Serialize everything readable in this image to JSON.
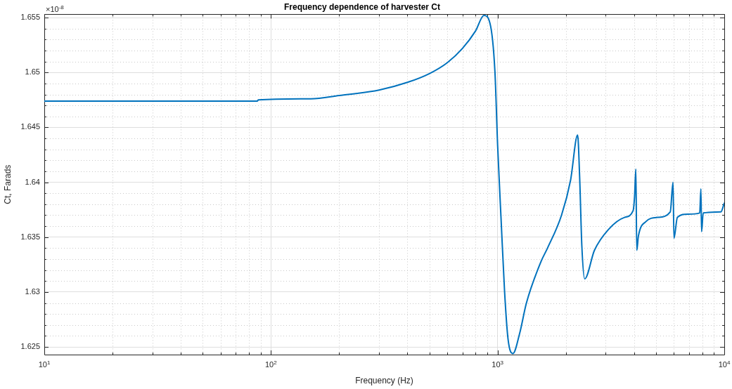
{
  "chart_data": {
    "type": "line",
    "title": "Frequency dependence of harvester Ct",
    "xlabel": "Frequency (Hz)",
    "ylabel": "Ct, Farads",
    "annotations": [
      "×10$^{-8}$"
    ],
    "log": "x",
    "grid": true,
    "legend": false,
    "marker": "none",
    "line_style": "solid",
    "xlim": [
      10,
      10000
    ],
    "xticks": [
      {
        "value": 10,
        "label": "10$^{1}$"
      },
      {
        "value": 20,
        "label": null
      },
      {
        "value": 30,
        "label": null
      },
      {
        "value": 40,
        "label": null
      },
      {
        "value": 50,
        "label": null
      },
      {
        "value": 60,
        "label": null
      },
      {
        "value": 70,
        "label": null
      },
      {
        "value": 80,
        "label": null
      },
      {
        "value": 90,
        "label": null
      },
      {
        "value": 100,
        "label": "10$^{2}$"
      },
      {
        "value": 200,
        "label": null
      },
      {
        "value": 300,
        "label": null
      },
      {
        "value": 400,
        "label": null
      },
      {
        "value": 500,
        "label": null
      },
      {
        "value": 600,
        "label": null
      },
      {
        "value": 700,
        "label": null
      },
      {
        "value": 800,
        "label": null
      },
      {
        "value": 900,
        "label": null
      },
      {
        "value": 1000,
        "label": "10$^{3}$"
      },
      {
        "value": 2000,
        "label": null
      },
      {
        "value": 3000,
        "label": null
      },
      {
        "value": 4000,
        "label": null
      },
      {
        "value": 5000,
        "label": null
      },
      {
        "value": 6000,
        "label": null
      },
      {
        "value": 7000,
        "label": null
      },
      {
        "value": 8000,
        "label": null
      },
      {
        "value": 9000,
        "label": null
      },
      {
        "value": 10000,
        "label": "10$^{4}$"
      }
    ],
    "ylim": [
      1.6243,
      1.6553
    ],
    "yticks": [
      {
        "value": 1.625,
        "label": "1.625"
      },
      {
        "value": 1.626,
        "label": null
      },
      {
        "value": 1.627,
        "label": null
      },
      {
        "value": 1.628,
        "label": null
      },
      {
        "value": 1.629,
        "label": null
      },
      {
        "value": 1.63,
        "label": "1.63"
      },
      {
        "value": 1.631,
        "label": null
      },
      {
        "value": 1.632,
        "label": null
      },
      {
        "value": 1.633,
        "label": null
      },
      {
        "value": 1.634,
        "label": null
      },
      {
        "value": 1.635,
        "label": "1.635"
      },
      {
        "value": 1.636,
        "label": null
      },
      {
        "value": 1.637,
        "label": null
      },
      {
        "value": 1.638,
        "label": null
      },
      {
        "value": 1.639,
        "label": null
      },
      {
        "value": 1.64,
        "label": "1.64"
      },
      {
        "value": 1.641,
        "label": null
      },
      {
        "value": 1.642,
        "label": null
      },
      {
        "value": 1.643,
        "label": null
      },
      {
        "value": 1.644,
        "label": null
      },
      {
        "value": 1.645,
        "label": "1.645"
      },
      {
        "value": 1.646,
        "label": null
      },
      {
        "value": 1.647,
        "label": null
      },
      {
        "value": 1.648,
        "label": null
      },
      {
        "value": 1.649,
        "label": null
      },
      {
        "value": 1.65,
        "label": "1.65"
      },
      {
        "value": 1.651,
        "label": null
      },
      {
        "value": 1.652,
        "label": null
      },
      {
        "value": 1.653,
        "label": null
      },
      {
        "value": 1.654,
        "label": null
      },
      {
        "value": 1.655,
        "label": "1.655"
      }
    ],
    "series": [
      {
        "color": "#0072bd",
        "x": [
          10,
          50,
          87,
          88,
          150,
          200,
          300,
          400,
          500,
          600,
          700,
          800,
          870,
          925,
          973,
          1000,
          1035,
          1073,
          1112,
          1169,
          1250,
          1340,
          1556,
          1660,
          1914,
          2099,
          2254,
          2300,
          2353,
          2422,
          2674,
          3083,
          3631,
          3960,
          4020,
          4073,
          4111,
          4180,
          4500,
          5082,
          5776,
          5943,
          5999,
          6211,
          6905,
          7792,
          7888,
          7940,
          8074,
          9663,
          10000
        ],
        "values": [
          1.6474,
          1.6474,
          1.6474,
          1.6475,
          1.6476,
          1.6479,
          1.6484,
          1.6491,
          1.6499,
          1.6509,
          1.6522,
          1.6538,
          1.6552,
          1.6545,
          1.6501,
          1.6434,
          1.6368,
          1.6301,
          1.6257,
          1.6244,
          1.6262,
          1.629,
          1.6328,
          1.634,
          1.637,
          1.6402,
          1.6443,
          1.6406,
          1.6342,
          1.6312,
          1.6338,
          1.6357,
          1.6368,
          1.6374,
          1.6387,
          1.6412,
          1.6338,
          1.6351,
          1.6364,
          1.6368,
          1.6373,
          1.64,
          1.6349,
          1.6368,
          1.6371,
          1.6372,
          1.6394,
          1.6355,
          1.6372,
          1.6373,
          1.6381
        ]
      }
    ]
  }
}
